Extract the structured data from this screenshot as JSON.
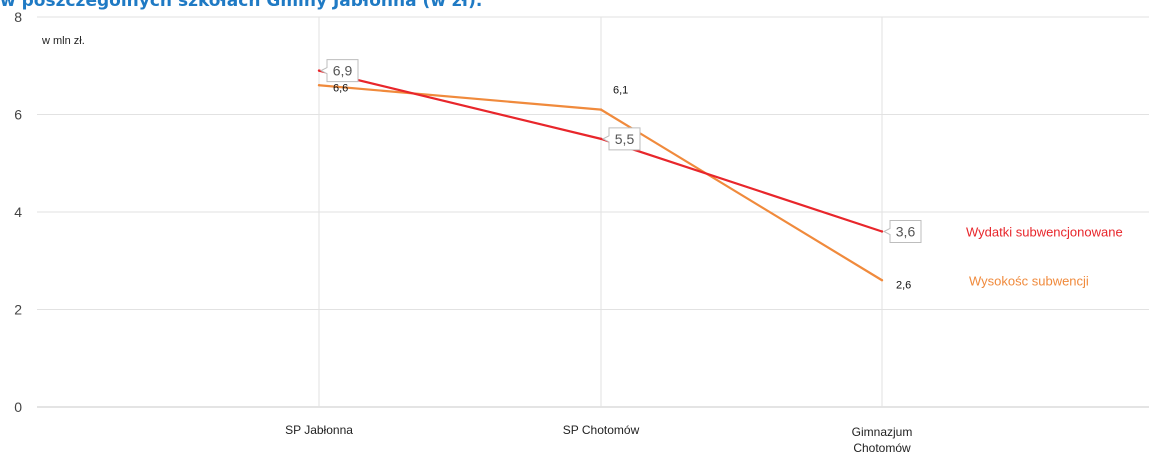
{
  "title": "w poszczególnych szkołach Gminy Jabłonna (w zł).",
  "chart_data": {
    "type": "line",
    "title": "w poszczególnych szkołach Gminy Jabłonna (w zł).",
    "unit_label": "w mln zł.",
    "categories": [
      "SP Jabłonna",
      "SP Chotomów",
      "Gimnazjum Chotomów"
    ],
    "series": [
      {
        "name": "Wydatki subwencjonowane",
        "color": "#e8262b",
        "values": [
          6.9,
          5.5,
          3.6
        ],
        "labels": [
          "6,9",
          "5,5",
          "3,6"
        ]
      },
      {
        "name": "Wysokośc subwencji",
        "color": "#f08a3c",
        "values": [
          6.6,
          6.1,
          2.6
        ],
        "labels": [
          "6,6",
          "6,1",
          "2,6"
        ]
      }
    ],
    "ylim": [
      0,
      8
    ],
    "yticks": [
      0,
      2,
      4,
      6,
      8
    ],
    "grid": true,
    "legend": "right, next to line ends"
  }
}
